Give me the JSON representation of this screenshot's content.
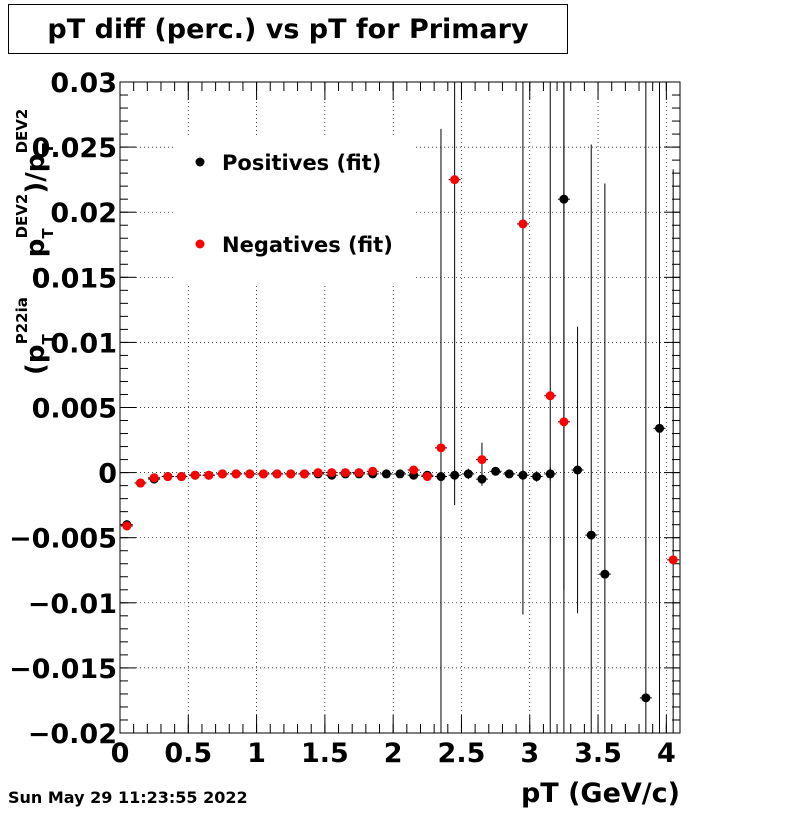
{
  "footer": {
    "timestamp": "Sun May 29 11:23:55 2022"
  },
  "chart_data": {
    "type": "scatter",
    "title": "pT diff (perc.) vs pT for Primary",
    "xlabel": "pT (GeV/c)",
    "ylabel_parts": {
      "main": "(p",
      "sub1": "T",
      "sup1": "P22ia",
      "minus": " − p",
      "sub2": "T",
      "sup2": "DEV2",
      "tail": ")/p",
      "sub3": "T",
      "sup3": "DEV2"
    },
    "xlim": [
      0,
      4.1
    ],
    "ylim": [
      -0.02,
      0.03
    ],
    "x_ticks": [
      0,
      0.5,
      1,
      1.5,
      2,
      2.5,
      3,
      3.5,
      4
    ],
    "x_tick_labels": [
      "0",
      "0.5",
      "1",
      "1.5",
      "2",
      "2.5",
      "3",
      "3.5",
      "4"
    ],
    "y_ticks": [
      -0.02,
      -0.015,
      -0.01,
      -0.005,
      0,
      0.005,
      0.01,
      0.015,
      0.02,
      0.025,
      0.03
    ],
    "y_tick_labels": [
      "−0.02",
      "−0.015",
      "−0.01",
      "−0.005",
      "0",
      "0.005",
      "0.01",
      "0.015",
      "0.02",
      "0.025",
      "0.03"
    ],
    "grid": true,
    "legend_position": "top-left",
    "series": [
      {
        "name": "Positives (fit)",
        "color": "#000000",
        "points": [
          {
            "x": 0.05,
            "y": -0.004,
            "err": 0.0002
          },
          {
            "x": 0.15,
            "y": -0.0008,
            "err": 0.0001
          },
          {
            "x": 0.25,
            "y": -0.0005,
            "err": 0.0001
          },
          {
            "x": 0.35,
            "y": -0.0003,
            "err": 0.0001
          },
          {
            "x": 0.45,
            "y": -0.0003,
            "err": 0.0001
          },
          {
            "x": 0.55,
            "y": -0.0002,
            "err": 0.0001
          },
          {
            "x": 0.65,
            "y": -0.0002,
            "err": 0.0001
          },
          {
            "x": 0.75,
            "y": -0.0001,
            "err": 0.0001
          },
          {
            "x": 0.85,
            "y": -0.0001,
            "err": 0.0001
          },
          {
            "x": 0.95,
            "y": -0.0001,
            "err": 0.0001
          },
          {
            "x": 1.05,
            "y": -0.0001,
            "err": 0.0001
          },
          {
            "x": 1.15,
            "y": -0.0001,
            "err": 0.0001
          },
          {
            "x": 1.25,
            "y": -0.0001,
            "err": 0.0001
          },
          {
            "x": 1.35,
            "y": -0.0001,
            "err": 0.0001
          },
          {
            "x": 1.45,
            "y": -0.0001,
            "err": 0.0001
          },
          {
            "x": 1.55,
            "y": -0.0002,
            "err": 0.0001
          },
          {
            "x": 1.65,
            "y": -0.0001,
            "err": 0.0001
          },
          {
            "x": 1.75,
            "y": -0.0001,
            "err": 0.0001
          },
          {
            "x": 1.85,
            "y": -0.0001,
            "err": 0.0001
          },
          {
            "x": 1.95,
            "y": -0.0001,
            "err": 0.0001
          },
          {
            "x": 2.05,
            "y": -0.0001,
            "err": 0.0002
          },
          {
            "x": 2.15,
            "y": -0.0002,
            "err": 0.0002
          },
          {
            "x": 2.25,
            "y": -0.0002,
            "err": 0.0003
          },
          {
            "x": 2.35,
            "y": -0.0003,
            "err": 0.0003
          },
          {
            "x": 2.45,
            "y": -0.0002,
            "err": 0.0004
          },
          {
            "x": 2.55,
            "y": -0.0001,
            "err": 0.0004
          },
          {
            "x": 2.65,
            "y": -0.0005,
            "err": 0.0005
          },
          {
            "x": 2.75,
            "y": 0.0001,
            "err": 0.0003
          },
          {
            "x": 2.85,
            "y": -0.0001,
            "err": 0.0003
          },
          {
            "x": 2.95,
            "y": -0.0002,
            "err": 0.0004
          },
          {
            "x": 3.05,
            "y": -0.0003,
            "err": 0.0004
          },
          {
            "x": 3.15,
            "y": -0.0001,
            "err": 0.0005
          },
          {
            "x": 3.25,
            "y": 0.021,
            "err": 0.03
          },
          {
            "x": 3.35,
            "y": 0.0002,
            "err": 0.011
          },
          {
            "x": 3.45,
            "y": -0.0048,
            "err": 0.03
          },
          {
            "x": 3.55,
            "y": -0.0078,
            "err": 0.03
          },
          {
            "x": 3.85,
            "y": -0.0173,
            "err": 0.05
          },
          {
            "x": 3.95,
            "y": 0.0034,
            "err": 0.05
          }
        ]
      },
      {
        "name": "Negatives (fit)",
        "color": "#ff0000",
        "points": [
          {
            "x": 0.05,
            "y": -0.0041,
            "err": 0.0002
          },
          {
            "x": 0.15,
            "y": -0.0008,
            "err": 0.0001
          },
          {
            "x": 0.25,
            "y": -0.0004,
            "err": 0.0001
          },
          {
            "x": 0.35,
            "y": -0.0003,
            "err": 0.0001
          },
          {
            "x": 0.45,
            "y": -0.0003,
            "err": 0.0001
          },
          {
            "x": 0.55,
            "y": -0.0002,
            "err": 0.0001
          },
          {
            "x": 0.65,
            "y": -0.0002,
            "err": 0.0001
          },
          {
            "x": 0.75,
            "y": -0.0001,
            "err": 0.0001
          },
          {
            "x": 0.85,
            "y": -0.0001,
            "err": 0.0001
          },
          {
            "x": 0.95,
            "y": -0.0001,
            "err": 0.0001
          },
          {
            "x": 1.05,
            "y": -0.0001,
            "err": 0.0001
          },
          {
            "x": 1.15,
            "y": -0.0001,
            "err": 0.0001
          },
          {
            "x": 1.25,
            "y": -0.0001,
            "err": 0.0001
          },
          {
            "x": 1.35,
            "y": -0.0001,
            "err": 0.0001
          },
          {
            "x": 1.45,
            "y": 0.0,
            "err": 0.0001
          },
          {
            "x": 1.55,
            "y": 0.0,
            "err": 0.0001
          },
          {
            "x": 1.65,
            "y": 0.0,
            "err": 0.0001
          },
          {
            "x": 1.75,
            "y": 0.0,
            "err": 0.0001
          },
          {
            "x": 1.85,
            "y": 0.0001,
            "err": 0.0001
          },
          {
            "x": 2.15,
            "y": 0.0002,
            "err": 0.0002
          },
          {
            "x": 2.25,
            "y": -0.0003,
            "err": 0.0003
          },
          {
            "x": 2.35,
            "y": 0.0019,
            "err": 0.0245
          },
          {
            "x": 2.45,
            "y": 0.0225,
            "err": 0.025
          },
          {
            "x": 2.65,
            "y": 0.001,
            "err": 0.0013
          },
          {
            "x": 2.95,
            "y": 0.0191,
            "err": 0.03
          },
          {
            "x": 3.15,
            "y": 0.0059,
            "err": 0.03
          },
          {
            "x": 3.25,
            "y": 0.0039,
            "err": 0.03
          },
          {
            "x": 4.05,
            "y": -0.0067,
            "err": 0.03
          }
        ]
      }
    ]
  }
}
